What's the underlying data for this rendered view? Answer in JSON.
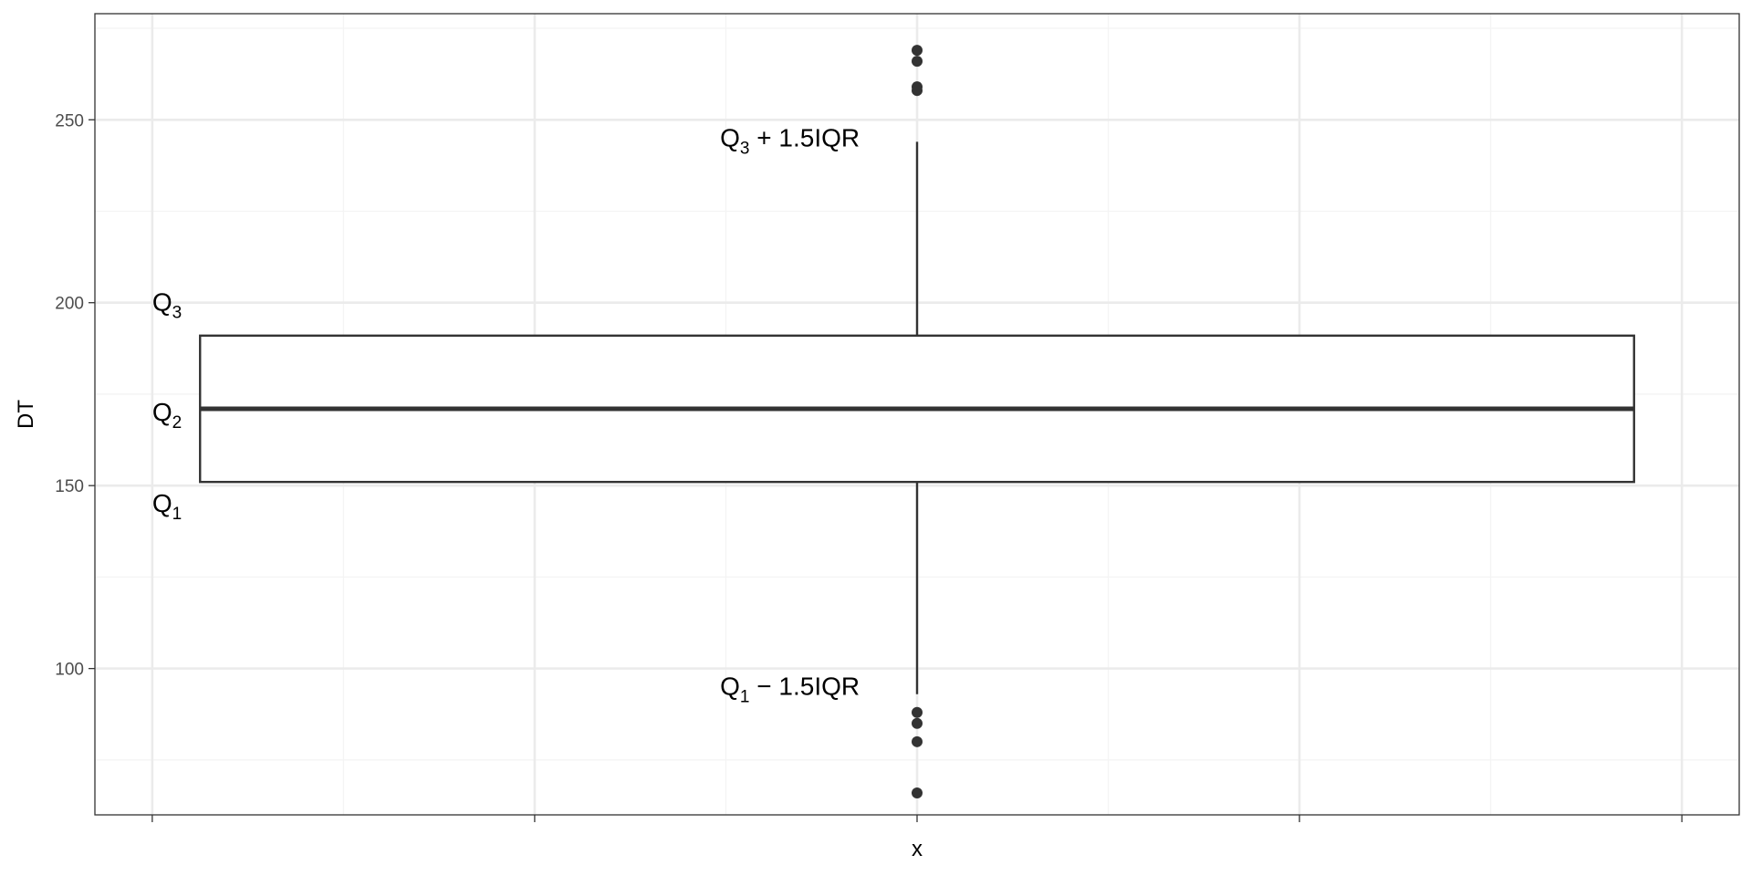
{
  "chart_data": {
    "type": "boxplot",
    "xlabel": "x",
    "ylabel": "DT",
    "ylim": [
      60,
      279
    ],
    "y_ticks": [
      100,
      150,
      200,
      250
    ],
    "y_minor_ticks": [
      75,
      125,
      175,
      225,
      275
    ],
    "x_domain": [
      -0.43,
      0.43
    ],
    "x_ticks": [
      -0.4,
      -0.2,
      0.0,
      0.2,
      0.4
    ],
    "x_minor_ticks": [
      -0.3,
      -0.1,
      0.1,
      0.3
    ],
    "x_tick_labels_visible": false,
    "grid": true,
    "box": {
      "x_center": 0.0,
      "x_left": -0.375,
      "x_right": 0.375,
      "q1": 151,
      "median": 171,
      "q3": 191,
      "whisker_low": 93,
      "whisker_high": 244
    },
    "outliers": [
      269,
      266,
      259,
      258,
      88,
      85,
      80,
      66
    ],
    "annotations": [
      {
        "id": "q3",
        "base": "Q",
        "sub": "3",
        "rest": "",
        "x": -0.4,
        "y": 200,
        "anchor": "start"
      },
      {
        "id": "q2",
        "base": "Q",
        "sub": "2",
        "rest": "",
        "x": -0.4,
        "y": 170,
        "anchor": "start"
      },
      {
        "id": "q1",
        "base": "Q",
        "sub": "1",
        "rest": "",
        "x": -0.4,
        "y": 145,
        "anchor": "start"
      },
      {
        "id": "upper-fence",
        "base": "Q",
        "sub": "3",
        "rest": " + 1.5IQR",
        "x": -0.03,
        "y": 245,
        "anchor": "end"
      },
      {
        "id": "lower-fence",
        "base": "Q",
        "sub": "1",
        "rest": " − 1.5IQR",
        "x": -0.03,
        "y": 95,
        "anchor": "end"
      }
    ],
    "colors": {
      "box_stroke": "#333333",
      "outlier": "#333333",
      "grid_major": "#ebebeb",
      "grid_minor": "#f4f4f4",
      "panel_border": "#333333"
    }
  }
}
